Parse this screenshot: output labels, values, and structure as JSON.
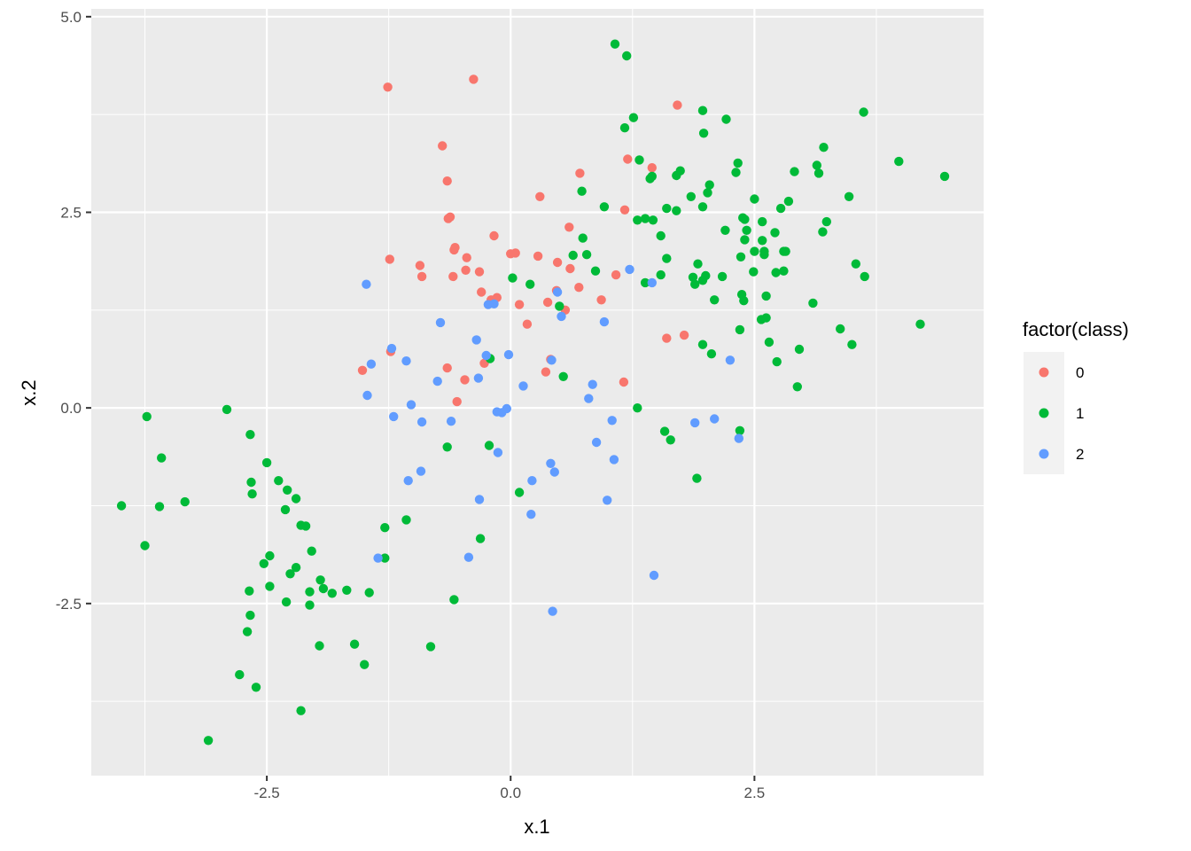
{
  "chart_data": {
    "type": "scatter",
    "xlabel": "x.1",
    "ylabel": "x.2",
    "xlim": [
      -4.3,
      4.85
    ],
    "ylim": [
      -4.7,
      5.1
    ],
    "x_ticks": [
      -2.5,
      0.0,
      2.5
    ],
    "x_tick_labels": [
      "-2.5",
      "0.0",
      "2.5"
    ],
    "y_ticks": [
      -2.5,
      0.0,
      2.5,
      5.0
    ],
    "y_tick_labels": [
      "-2.5",
      "0.0",
      "2.5",
      "5.0"
    ],
    "x_minor": [
      -3.75,
      -1.25,
      1.25,
      3.75
    ],
    "y_minor": [
      -3.75,
      -1.25,
      1.25,
      3.75
    ],
    "grid": true,
    "legend": {
      "title": "factor(class)",
      "position": "right"
    },
    "colors": {
      "panel": "#ebebeb",
      "grid": "#ffffff"
    },
    "series": [
      {
        "name": "0",
        "color": "#F8766D",
        "points": [
          [
            -1.26,
            4.1
          ],
          [
            -0.38,
            4.2
          ],
          [
            -0.7,
            3.35
          ],
          [
            -0.65,
            2.9
          ],
          [
            -0.64,
            2.42
          ],
          [
            -0.62,
            2.44
          ],
          [
            -0.57,
            2.05
          ],
          [
            -0.58,
            2.02
          ],
          [
            -0.59,
            1.68
          ],
          [
            -0.45,
            1.92
          ],
          [
            -0.46,
            1.76
          ],
          [
            -0.32,
            1.74
          ],
          [
            -0.17,
            2.2
          ],
          [
            -1.24,
            1.9
          ],
          [
            -0.93,
            1.82
          ],
          [
            -0.91,
            1.68
          ],
          [
            -0.3,
            1.48
          ],
          [
            -0.2,
            1.38
          ],
          [
            -0.14,
            1.41
          ],
          [
            0.0,
            1.97
          ],
          [
            0.05,
            1.98
          ],
          [
            0.09,
            1.32
          ],
          [
            0.3,
            2.7
          ],
          [
            0.28,
            1.94
          ],
          [
            0.38,
            1.35
          ],
          [
            0.47,
            1.5
          ],
          [
            0.48,
            1.86
          ],
          [
            0.6,
            2.31
          ],
          [
            0.61,
            1.78
          ],
          [
            0.56,
            1.25
          ],
          [
            0.71,
            3.0
          ],
          [
            0.7,
            1.54
          ],
          [
            0.93,
            1.38
          ],
          [
            1.08,
            1.7
          ],
          [
            1.17,
            2.53
          ],
          [
            1.2,
            3.18
          ],
          [
            1.45,
            3.07
          ],
          [
            1.71,
            3.87
          ],
          [
            1.6,
            0.89
          ],
          [
            1.78,
            0.93
          ],
          [
            0.17,
            1.07
          ],
          [
            0.41,
            0.62
          ],
          [
            0.36,
            0.46
          ],
          [
            -0.47,
            0.36
          ],
          [
            -0.27,
            0.57
          ],
          [
            -0.65,
            0.51
          ],
          [
            -0.55,
            0.08
          ],
          [
            -1.23,
            0.72
          ],
          [
            -1.52,
            0.48
          ],
          [
            1.16,
            0.33
          ]
        ]
      },
      {
        "name": "1",
        "color": "#00BA38",
        "points": [
          [
            1.07,
            4.65
          ],
          [
            1.19,
            4.5
          ],
          [
            1.26,
            3.71
          ],
          [
            1.17,
            3.58
          ],
          [
            1.32,
            3.17
          ],
          [
            1.43,
            2.93
          ],
          [
            1.45,
            2.96
          ],
          [
            1.3,
            2.4
          ],
          [
            1.38,
            2.42
          ],
          [
            1.46,
            2.4
          ],
          [
            1.54,
            2.2
          ],
          [
            1.6,
            2.55
          ],
          [
            1.6,
            1.91
          ],
          [
            1.54,
            1.7
          ],
          [
            1.38,
            1.6
          ],
          [
            1.7,
            2.97
          ],
          [
            1.74,
            3.03
          ],
          [
            1.7,
            2.52
          ],
          [
            1.85,
            2.7
          ],
          [
            1.92,
            1.84
          ],
          [
            1.87,
            1.67
          ],
          [
            1.89,
            1.58
          ],
          [
            1.97,
            3.8
          ],
          [
            1.98,
            3.51
          ],
          [
            2.02,
            2.75
          ],
          [
            2.04,
            2.85
          ],
          [
            1.97,
            2.57
          ],
          [
            2.0,
            1.69
          ],
          [
            1.97,
            1.63
          ],
          [
            2.21,
            3.69
          ],
          [
            2.17,
            1.68
          ],
          [
            2.09,
            1.38
          ],
          [
            2.2,
            2.27
          ],
          [
            2.31,
            3.01
          ],
          [
            2.33,
            3.13
          ],
          [
            2.36,
            1.93
          ],
          [
            2.38,
            2.43
          ],
          [
            2.4,
            2.41
          ],
          [
            2.4,
            2.15
          ],
          [
            2.42,
            2.27
          ],
          [
            2.37,
            1.45
          ],
          [
            2.39,
            1.37
          ],
          [
            2.35,
            1.0
          ],
          [
            2.5,
            2.67
          ],
          [
            2.5,
            2.0
          ],
          [
            2.49,
            1.74
          ],
          [
            2.58,
            2.38
          ],
          [
            2.58,
            2.14
          ],
          [
            2.6,
            2.0
          ],
          [
            2.6,
            1.96
          ],
          [
            2.57,
            1.13
          ],
          [
            2.62,
            1.15
          ],
          [
            2.62,
            1.43
          ],
          [
            2.65,
            0.84
          ],
          [
            2.71,
            2.24
          ],
          [
            2.72,
            1.73
          ],
          [
            2.73,
            0.59
          ],
          [
            2.77,
            2.55
          ],
          [
            2.8,
            2.0
          ],
          [
            2.8,
            1.75
          ],
          [
            2.82,
            2.0
          ],
          [
            2.85,
            2.64
          ],
          [
            2.91,
            3.02
          ],
          [
            2.96,
            0.75
          ],
          [
            2.94,
            0.27
          ],
          [
            3.1,
            1.34
          ],
          [
            3.14,
            3.1
          ],
          [
            3.16,
            3.0
          ],
          [
            3.21,
            3.33
          ],
          [
            3.2,
            2.25
          ],
          [
            3.24,
            2.38
          ],
          [
            3.38,
            1.01
          ],
          [
            3.47,
            2.7
          ],
          [
            3.5,
            0.81
          ],
          [
            3.54,
            1.84
          ],
          [
            3.62,
            3.78
          ],
          [
            3.63,
            1.68
          ],
          [
            3.98,
            3.15
          ],
          [
            4.2,
            1.07
          ],
          [
            4.45,
            2.96
          ],
          [
            0.73,
            2.77
          ],
          [
            0.74,
            2.17
          ],
          [
            0.64,
            1.95
          ],
          [
            0.78,
            1.96
          ],
          [
            0.87,
            1.75
          ],
          [
            0.96,
            2.57
          ],
          [
            0.02,
            1.66
          ],
          [
            0.2,
            1.58
          ],
          [
            0.5,
            1.3
          ],
          [
            0.54,
            0.4
          ],
          [
            1.3,
            0.0
          ],
          [
            1.58,
            -0.3
          ],
          [
            1.64,
            -0.41
          ],
          [
            1.91,
            -0.9
          ],
          [
            2.35,
            -0.29
          ],
          [
            1.97,
            0.81
          ],
          [
            2.06,
            0.69
          ],
          [
            0.09,
            -1.08
          ],
          [
            -0.22,
            -0.48
          ],
          [
            -0.21,
            0.63
          ],
          [
            -0.65,
            -0.5
          ],
          [
            -0.31,
            -1.67
          ],
          [
            -0.58,
            -2.45
          ],
          [
            -0.82,
            -3.05
          ],
          [
            -1.07,
            -1.43
          ],
          [
            -1.29,
            -1.53
          ],
          [
            -1.29,
            -1.92
          ],
          [
            -1.45,
            -2.36
          ],
          [
            -1.5,
            -3.28
          ],
          [
            -1.6,
            -3.02
          ],
          [
            -1.68,
            -2.33
          ],
          [
            -1.83,
            -2.37
          ],
          [
            -1.92,
            -2.31
          ],
          [
            -1.95,
            -2.2
          ],
          [
            -1.96,
            -3.04
          ],
          [
            -2.06,
            -2.35
          ],
          [
            -2.06,
            -2.52
          ],
          [
            -2.04,
            -1.83
          ],
          [
            -2.1,
            -1.51
          ],
          [
            -2.15,
            -1.5
          ],
          [
            -2.2,
            -2.04
          ],
          [
            -2.15,
            -3.87
          ],
          [
            -2.2,
            -1.16
          ],
          [
            -2.26,
            -2.12
          ],
          [
            -2.29,
            -1.05
          ],
          [
            -2.31,
            -1.3
          ],
          [
            -2.3,
            -2.48
          ],
          [
            -2.38,
            -0.93
          ],
          [
            -2.47,
            -1.89
          ],
          [
            -2.47,
            -2.28
          ],
          [
            -2.5,
            -0.7
          ],
          [
            -2.53,
            -1.99
          ],
          [
            -2.61,
            -3.57
          ],
          [
            -2.65,
            -1.1
          ],
          [
            -2.66,
            -0.95
          ],
          [
            -2.67,
            -0.34
          ],
          [
            -2.68,
            -2.34
          ],
          [
            -2.67,
            -2.65
          ],
          [
            -2.7,
            -2.86
          ],
          [
            -2.78,
            -3.41
          ],
          [
            -2.91,
            -0.02
          ],
          [
            -3.1,
            -4.25
          ],
          [
            -3.34,
            -1.2
          ],
          [
            -3.58,
            -0.64
          ],
          [
            -3.6,
            -1.26
          ],
          [
            -3.73,
            -0.11
          ],
          [
            -3.75,
            -1.76
          ],
          [
            -3.99,
            -1.25
          ]
        ]
      },
      {
        "name": "2",
        "color": "#619CFF",
        "points": [
          [
            1.22,
            1.77
          ],
          [
            1.45,
            1.6
          ],
          [
            0.48,
            1.48
          ],
          [
            0.52,
            1.17
          ],
          [
            -0.17,
            1.33
          ],
          [
            -0.23,
            1.32
          ],
          [
            -0.35,
            0.87
          ],
          [
            -0.72,
            1.09
          ],
          [
            -1.48,
            1.58
          ],
          [
            -1.22,
            0.76
          ],
          [
            -1.43,
            0.56
          ],
          [
            -1.47,
            0.16
          ],
          [
            -1.07,
            0.6
          ],
          [
            -1.2,
            -0.11
          ],
          [
            -1.02,
            0.04
          ],
          [
            -0.91,
            -0.18
          ],
          [
            -0.75,
            0.34
          ],
          [
            -0.61,
            -0.17
          ],
          [
            -0.33,
            0.38
          ],
          [
            -0.25,
            0.67
          ],
          [
            -0.02,
            0.68
          ],
          [
            0.13,
            0.28
          ],
          [
            -0.14,
            -0.05
          ],
          [
            -0.09,
            -0.06
          ],
          [
            -0.04,
            -0.01
          ],
          [
            -0.13,
            -0.57
          ],
          [
            0.42,
            0.61
          ],
          [
            0.8,
            0.12
          ],
          [
            0.84,
            0.3
          ],
          [
            0.96,
            1.1
          ],
          [
            1.04,
            -0.16
          ],
          [
            1.06,
            -0.66
          ],
          [
            0.88,
            -0.44
          ],
          [
            0.99,
            -1.18
          ],
          [
            0.41,
            -0.71
          ],
          [
            0.45,
            -0.82
          ],
          [
            0.22,
            -0.93
          ],
          [
            0.21,
            -1.36
          ],
          [
            -0.32,
            -1.17
          ],
          [
            -0.43,
            -1.91
          ],
          [
            -0.92,
            -0.81
          ],
          [
            -1.05,
            -0.93
          ],
          [
            -1.36,
            -1.92
          ],
          [
            0.43,
            -2.6
          ],
          [
            1.47,
            -2.14
          ],
          [
            1.89,
            -0.19
          ],
          [
            2.09,
            -0.14
          ],
          [
            2.25,
            0.61
          ],
          [
            2.34,
            -0.39
          ]
        ]
      }
    ]
  }
}
